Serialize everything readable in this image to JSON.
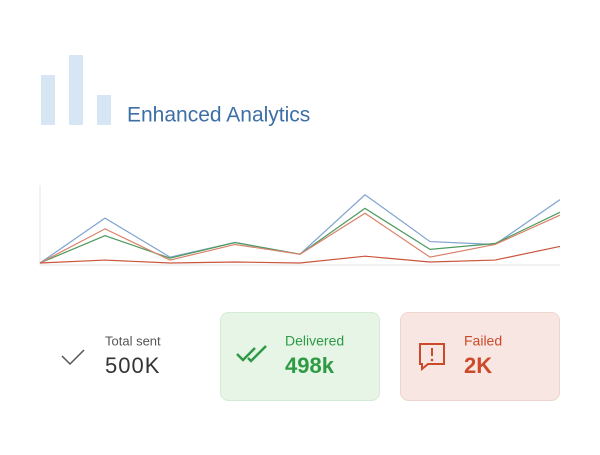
{
  "header": {
    "title": "Enhanced Analytics"
  },
  "chart_data": {
    "type": "line",
    "categories": [
      null,
      null,
      null,
      null,
      null,
      null,
      null,
      null,
      null
    ],
    "ylim": [
      0,
      80
    ],
    "series": [
      {
        "color": "#7fa3cf",
        "values": [
          0,
          46,
          6,
          21,
          9,
          70,
          22,
          19,
          65
        ]
      },
      {
        "color": "#4d9a5e",
        "values": [
          0,
          28,
          5,
          21,
          9,
          56,
          14,
          20,
          52
        ]
      },
      {
        "color": "#d9826a",
        "values": [
          0,
          35,
          3,
          19,
          9,
          51,
          6,
          19,
          49
        ]
      },
      {
        "color": "#c9553c",
        "values": [
          0,
          3,
          0,
          1,
          0,
          7,
          1,
          3,
          17
        ]
      }
    ]
  },
  "stats": [
    {
      "label": "Total sent",
      "value": "500K"
    },
    {
      "label": "Delivered",
      "value": "498k"
    },
    {
      "label": "Failed",
      "value": "2K"
    }
  ]
}
